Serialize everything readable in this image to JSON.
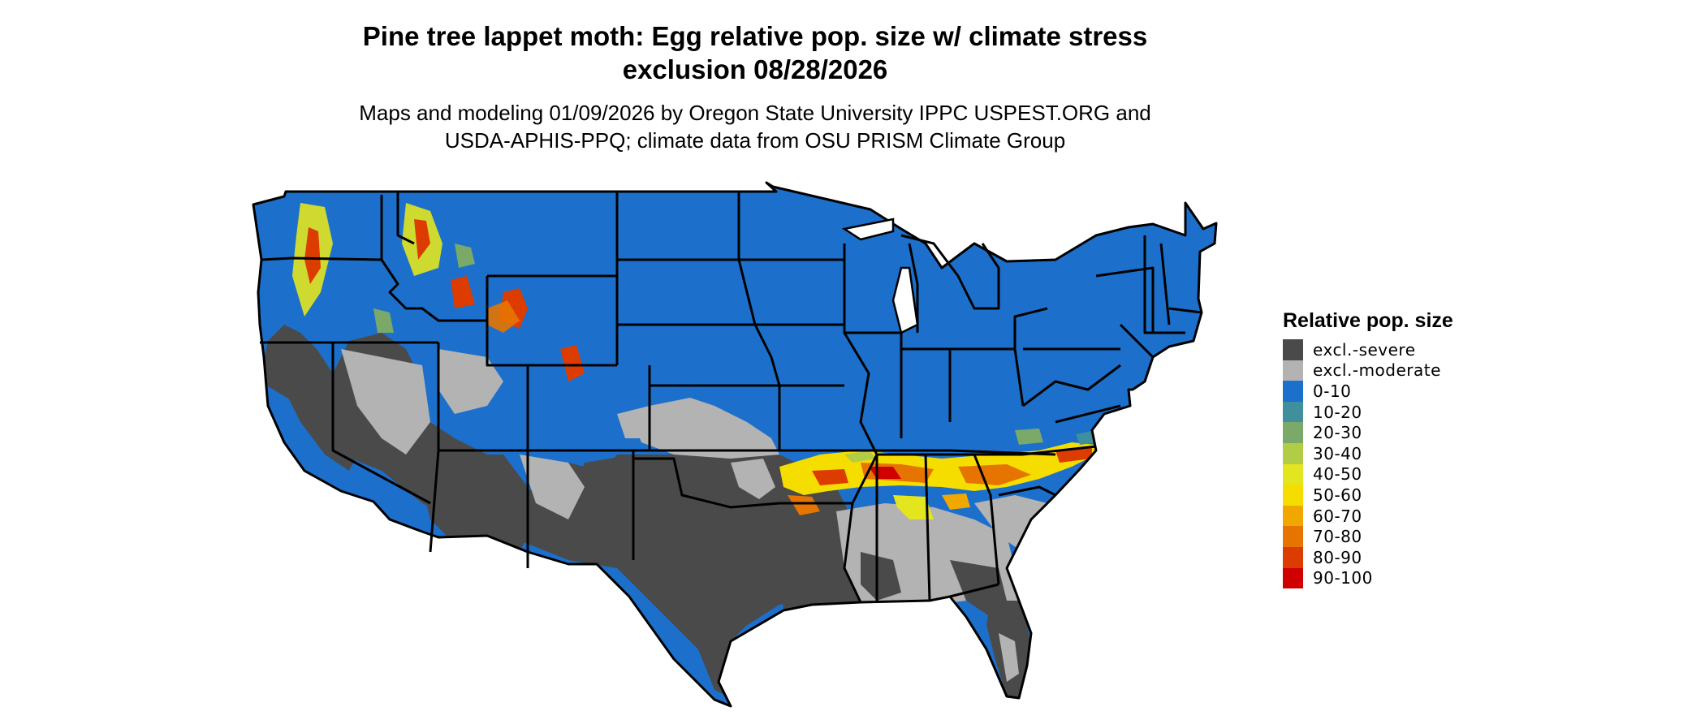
{
  "title": {
    "line1": "Pine tree lappet moth: Egg relative pop. size w/ climate stress",
    "line2": "exclusion 08/28/2026"
  },
  "subtitle": {
    "line1": "Maps and modeling 01/09/2026 by Oregon State University IPPC USPEST.ORG and",
    "line2": "USDA-APHIS-PPQ; climate data from OSU PRISM Climate Group"
  },
  "legend": {
    "title": "Relative pop. size",
    "items": [
      {
        "label": "excl.-severe",
        "color": "#4a4a4a"
      },
      {
        "label": "excl.-moderate",
        "color": "#b3b3b3"
      },
      {
        "label": "0-10",
        "color": "#1c70cc"
      },
      {
        "label": "10-20",
        "color": "#3f8f9d"
      },
      {
        "label": "20-30",
        "color": "#7aa96a"
      },
      {
        "label": "30-40",
        "color": "#b2cc45"
      },
      {
        "label": "40-50",
        "color": "#e3e51f"
      },
      {
        "label": "50-60",
        "color": "#f6dd00"
      },
      {
        "label": "60-70",
        "color": "#f0a800"
      },
      {
        "label": "70-80",
        "color": "#e67400"
      },
      {
        "label": "80-90",
        "color": "#dc3c00"
      },
      {
        "label": "90-100",
        "color": "#d00000"
      }
    ]
  }
}
